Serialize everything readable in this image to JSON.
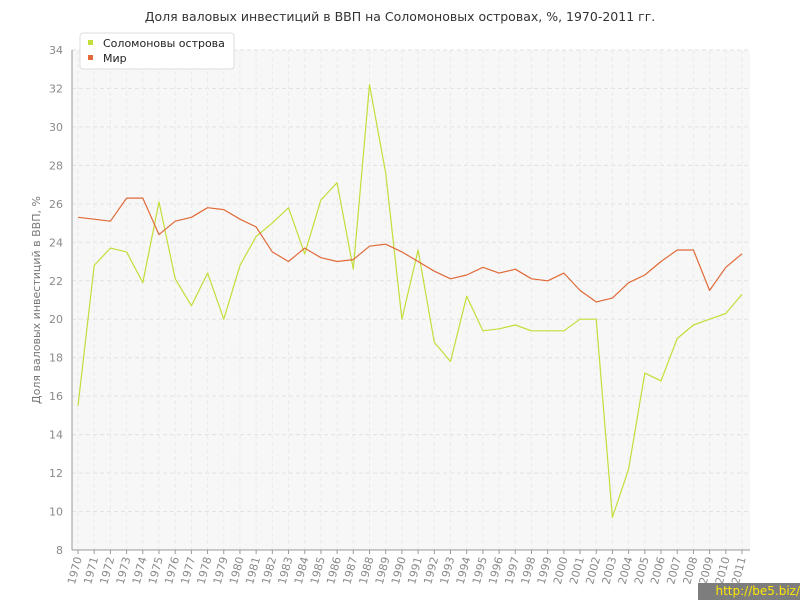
{
  "watermark": "http://be5.biz/",
  "chart_data": {
    "type": "line",
    "title": "Доля валовых инвестиций в ВВП на Соломоновых островах, %, 1970-2011 гг.",
    "xlabel": "",
    "ylabel": "Доля валовых инвестиций в ВВП, %",
    "ylim": [
      8,
      34
    ],
    "yticks": [
      8,
      10,
      12,
      14,
      16,
      18,
      20,
      22,
      24,
      26,
      28,
      30,
      32,
      34
    ],
    "grid": true,
    "legend_position": "top-left",
    "categories": [
      "1970",
      "1971",
      "1972",
      "1973",
      "1974",
      "1975",
      "1976",
      "1977",
      "1978",
      "1979",
      "1980",
      "1981",
      "1982",
      "1983",
      "1984",
      "1985",
      "1986",
      "1987",
      "1988",
      "1989",
      "1990",
      "1991",
      "1992",
      "1993",
      "1994",
      "1995",
      "1996",
      "1997",
      "1998",
      "1999",
      "2000",
      "2001",
      "2002",
      "2003",
      "2004",
      "2005",
      "2006",
      "2007",
      "2008",
      "2009",
      "2010",
      "2011"
    ],
    "series": [
      {
        "name": "Соломоновы острова",
        "color": "#c5dd3a",
        "values": [
          15.5,
          22.8,
          23.7,
          23.5,
          21.9,
          26.1,
          22.1,
          20.7,
          22.4,
          20.0,
          22.8,
          24.3,
          25.0,
          25.8,
          23.4,
          26.2,
          27.1,
          22.6,
          32.2,
          27.6,
          20.0,
          23.6,
          18.8,
          17.8,
          21.2,
          19.4,
          19.5,
          19.7,
          19.4,
          19.4,
          19.4,
          20.0,
          20.0,
          9.7,
          12.2,
          17.2,
          16.8,
          19.0,
          19.7,
          20.0,
          20.3,
          21.3
        ]
      },
      {
        "name": "Мир",
        "color": "#e06a38",
        "values": [
          25.3,
          25.2,
          25.1,
          26.3,
          26.3,
          24.4,
          25.1,
          25.3,
          25.8,
          25.7,
          25.2,
          24.8,
          23.5,
          23.0,
          23.7,
          23.2,
          23.0,
          23.1,
          23.8,
          23.9,
          23.5,
          23.0,
          22.5,
          22.1,
          22.3,
          22.7,
          22.4,
          22.6,
          22.1,
          22.0,
          22.4,
          21.5,
          20.9,
          21.1,
          21.9,
          22.3,
          23.0,
          23.6,
          23.6,
          21.5,
          22.7,
          23.4
        ]
      }
    ]
  }
}
